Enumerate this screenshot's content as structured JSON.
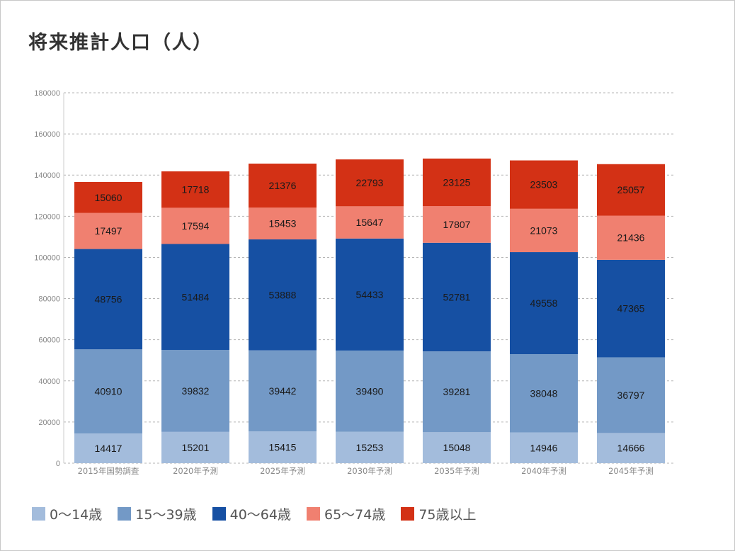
{
  "title": "将来推計人口（人）",
  "chart_data": {
    "type": "bar",
    "stacked": true,
    "title": "将来推計人口（人）",
    "xlabel": "",
    "ylabel": "",
    "ylim": [
      0,
      180000
    ],
    "yticks": [
      0,
      20000,
      40000,
      60000,
      80000,
      100000,
      120000,
      140000,
      160000,
      180000
    ],
    "grid": true,
    "legend_position": "bottom-left",
    "categories": [
      "2015年国勢調査",
      "2020年予測",
      "2025年予測",
      "2030年予測",
      "2035年予測",
      "2040年予測",
      "2045年予測"
    ],
    "series": [
      {
        "name": "0〜14歳",
        "color": "#a3bcdc",
        "values": [
          14417,
          15201,
          15415,
          15253,
          15048,
          14946,
          14666
        ]
      },
      {
        "name": "15〜39歳",
        "color": "#7399c6",
        "values": [
          40910,
          39832,
          39442,
          39490,
          39281,
          38048,
          36797
        ]
      },
      {
        "name": "40〜64歳",
        "color": "#1650a3",
        "values": [
          48756,
          51484,
          53888,
          54433,
          52781,
          49558,
          47365
        ]
      },
      {
        "name": "65〜74歳",
        "color": "#f08070",
        "values": [
          17497,
          17594,
          15453,
          15647,
          17807,
          21073,
          21436
        ]
      },
      {
        "name": "75歳以上",
        "color": "#d33115",
        "values": [
          15060,
          17718,
          21376,
          22793,
          23125,
          23503,
          25057
        ]
      }
    ]
  }
}
